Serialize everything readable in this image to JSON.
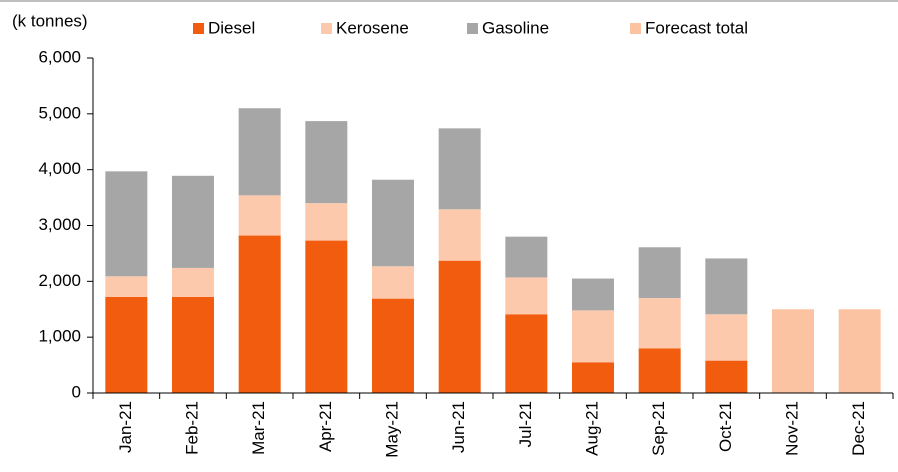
{
  "chart_data": {
    "type": "stacked_bar",
    "y_axis_label": "(k tonnes)",
    "categories": [
      "Jan-21",
      "Feb-21",
      "Mar-21",
      "Apr-21",
      "May-21",
      "Jun-21",
      "Jul-21",
      "Aug-21",
      "Sep-21",
      "Oct-21",
      "Nov-21",
      "Dec-21"
    ],
    "series": [
      {
        "name": "Diesel",
        "color": "#f25c0f",
        "values": [
          1720,
          1720,
          2820,
          2730,
          1690,
          2370,
          1410,
          550,
          800,
          580,
          null,
          null
        ]
      },
      {
        "name": "Kerosene",
        "color": "#fcc9ad",
        "values": [
          370,
          520,
          720,
          670,
          580,
          920,
          660,
          930,
          900,
          830,
          null,
          null
        ]
      },
      {
        "name": "Gasoline",
        "color": "#a6a6a6",
        "values": [
          1880,
          1650,
          1560,
          1470,
          1550,
          1450,
          730,
          570,
          910,
          1000,
          null,
          null
        ]
      },
      {
        "name": "Forecast total",
        "color": "#fcc3a3",
        "values": [
          null,
          null,
          null,
          null,
          null,
          null,
          null,
          null,
          null,
          null,
          1500,
          1500
        ]
      }
    ],
    "ylim": [
      0,
      6000
    ],
    "yticks": [
      0,
      {
        "value": 1000,
        "label": "1,000"
      },
      {
        "value": 2000,
        "label": "2,000"
      },
      {
        "value": 3000,
        "label": "3,000"
      },
      {
        "value": 4000,
        "label": "4,000"
      },
      {
        "value": 5000,
        "label": "5,000"
      },
      {
        "value": 6000,
        "label": "6,000"
      }
    ]
  }
}
